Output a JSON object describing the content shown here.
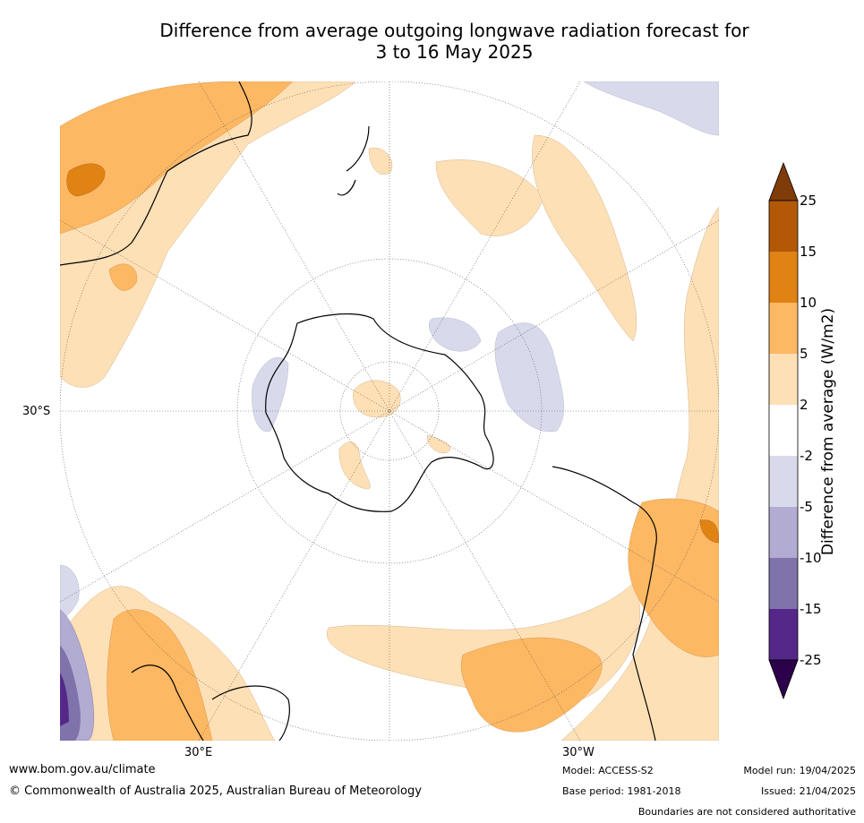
{
  "title_line1": "Difference from average outgoing longwave radiation forecast for",
  "title_line2": "3 to 16 May 2025",
  "map": {
    "projection": "south-polar-stereographic",
    "parallel_label": "30°S",
    "meridian_labels": [
      "30°E",
      "30°W"
    ]
  },
  "colorbar": {
    "label": "Difference from average (W/m2)",
    "tick_labels": [
      "25",
      "15",
      "10",
      "5",
      "2",
      "-2",
      "-5",
      "-10",
      "-15",
      "-25"
    ],
    "bins": [
      {
        "range": "> 25",
        "color": "#7f3b08"
      },
      {
        "range": "15 to 25",
        "color": "#b35806"
      },
      {
        "range": "10 to 15",
        "color": "#e08214"
      },
      {
        "range": "5 to 10",
        "color": "#fdb863"
      },
      {
        "range": "2 to 5",
        "color": "#fee0b6"
      },
      {
        "range": "-2 to 2",
        "color": "#ffffff"
      },
      {
        "range": "-5 to -2",
        "color": "#d8daeb"
      },
      {
        "range": "-10 to -5",
        "color": "#b2abd2"
      },
      {
        "range": "-15 to -10",
        "color": "#8073ac"
      },
      {
        "range": "-25 to -15",
        "color": "#542788"
      },
      {
        "range": "< -25",
        "color": "#2d004b"
      }
    ]
  },
  "footer": {
    "website": "www.bom.gov.au/climate",
    "copyright": "© Commonwealth of Australia 2025, Australian Bureau of Meteorology",
    "model": "Model: ACCESS-S2",
    "base_period": "Base period: 1981-2018",
    "model_run": "Model run: 19/04/2025",
    "issued": "Issued: 21/04/2025",
    "disclaimer": "Boundaries are not considered authoritative"
  }
}
